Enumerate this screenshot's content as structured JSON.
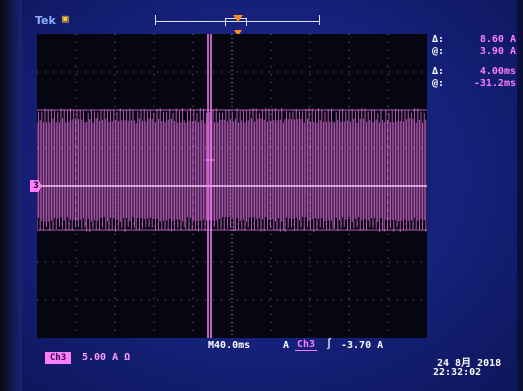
{
  "header": {
    "brand": "Tek",
    "trigger_status_icon": "run-icon"
  },
  "channel": {
    "ground_marker": "3",
    "badge": "Ch3",
    "scale": "5.00 A Ω",
    "trace_color": "#ff7cff"
  },
  "cursors": {
    "delta_amplitude_symbol": "Δ:",
    "delta_amplitude": "8.60 A",
    "cursor_amplitude_symbol": "@:",
    "cursor_amplitude": "3.90 A",
    "delta_time_symbol": "Δ:",
    "delta_time": "4.00ms",
    "cursor_time_symbol": "@:",
    "cursor_time": "-31.2ms"
  },
  "horizontal": {
    "timebase": "M40.0ms"
  },
  "trigger": {
    "mode_label": "A",
    "source": "Ch3",
    "slope_icon": "rising-edge-icon",
    "slope_glyph": "∫",
    "level": "-3.70 A"
  },
  "clock": {
    "date": "24 8月 2018",
    "time": "22:32:02"
  },
  "colors": {
    "screen_background": "#15217a",
    "graticule_background": "#05060f",
    "trace": "#ff7cff",
    "trigger_marker": "#ff8c1a"
  }
}
